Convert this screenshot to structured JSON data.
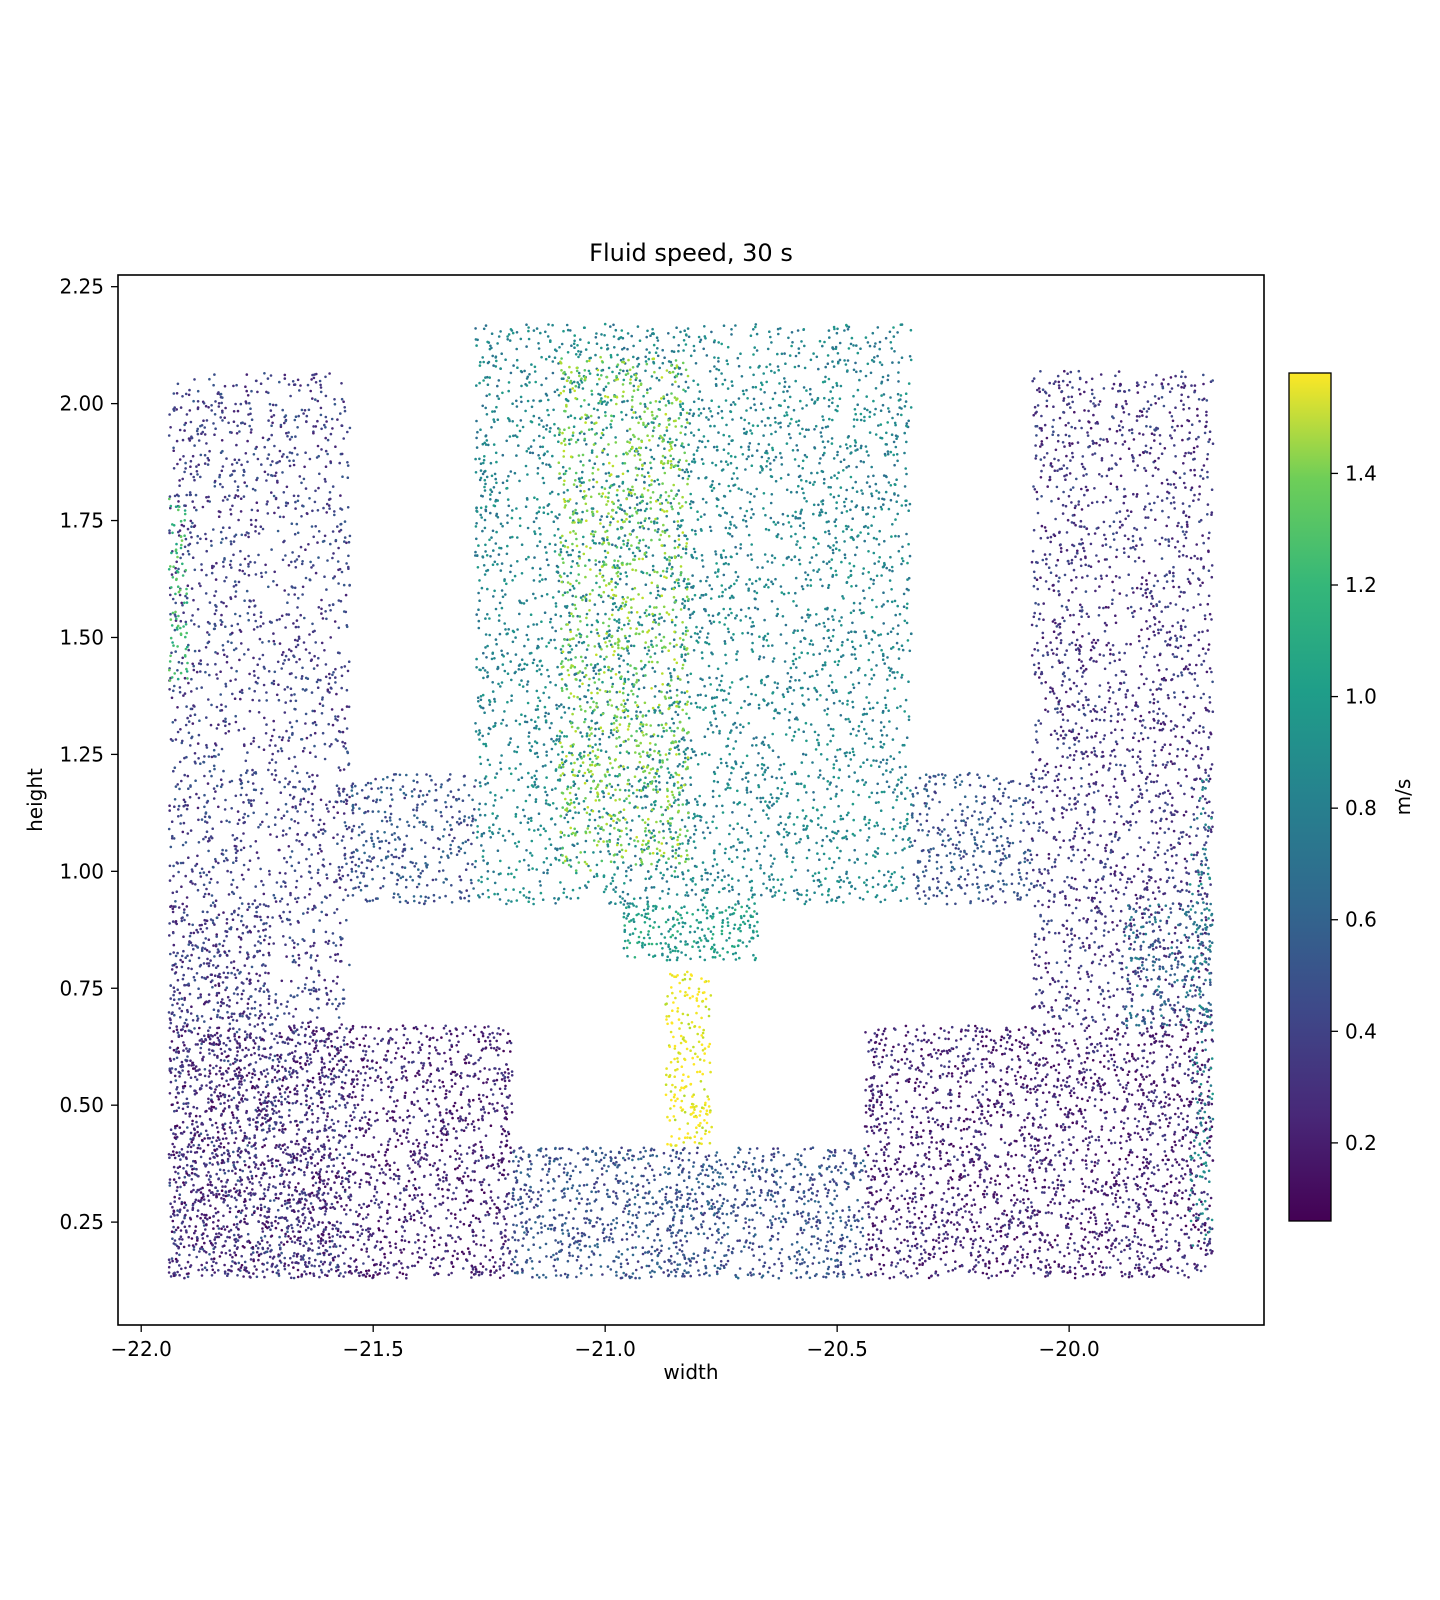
{
  "chart_data": {
    "type": "scatter",
    "title": "Fluid speed, 30 s",
    "xlabel": "width",
    "ylabel": "height",
    "xlim": [
      -22.05,
      -19.58
    ],
    "ylim": [
      0.03,
      2.275
    ],
    "xticks": [
      -22.0,
      -21.5,
      -21.0,
      -20.5,
      -20.0
    ],
    "xtick_labels": [
      "−22.0",
      "−21.5",
      "−21.0",
      "−20.5",
      "−20.0"
    ],
    "yticks": [
      0.25,
      0.5,
      0.75,
      1.0,
      1.25,
      1.5,
      1.75,
      2.0,
      2.25
    ],
    "ytick_labels": [
      "0.25",
      "0.50",
      "0.75",
      "1.00",
      "1.25",
      "1.50",
      "1.75",
      "2.00",
      "2.25"
    ],
    "grid": false,
    "point_color_by": "speed",
    "colorbar": {
      "label": "m/s",
      "colormap": "viridis",
      "range": [
        0.06,
        1.58
      ],
      "ticks": [
        0.2,
        0.4,
        0.6,
        0.8,
        1.0,
        1.2,
        1.4
      ],
      "tick_labels": [
        "0.2",
        "0.4",
        "0.6",
        "0.8",
        "1.0",
        "1.2",
        "1.4"
      ]
    },
    "regions": [
      {
        "x": [
          -21.94,
          -21.55
        ],
        "y": [
          0.13,
          2.07
        ],
        "speed": 0.35,
        "count": 2600
      },
      {
        "x": [
          -21.94,
          -21.72
        ],
        "y": [
          0.68,
          0.93
        ],
        "speed": 0.3,
        "count": 200
      },
      {
        "x": [
          -21.55,
          -21.28
        ],
        "y": [
          0.93,
          1.21
        ],
        "speed": 0.45,
        "count": 350
      },
      {
        "x": [
          -21.28,
          -20.34
        ],
        "y": [
          0.93,
          2.17
        ],
        "speed": 0.75,
        "count": 4200
      },
      {
        "x": [
          -21.1,
          -20.82
        ],
        "y": [
          1.0,
          2.1
        ],
        "speed": 1.3,
        "count": 1100
      },
      {
        "x": [
          -20.34,
          -20.08
        ],
        "y": [
          0.93,
          1.21
        ],
        "speed": 0.45,
        "count": 350
      },
      {
        "x": [
          -20.08,
          -19.69
        ],
        "y": [
          0.67,
          2.07
        ],
        "speed": 0.3,
        "count": 2200
      },
      {
        "x": [
          -19.88,
          -19.69
        ],
        "y": [
          0.67,
          0.93
        ],
        "speed": 0.6,
        "count": 200
      },
      {
        "x": [
          -21.94,
          -21.2
        ],
        "y": [
          0.13,
          0.67
        ],
        "speed": 0.22,
        "count": 2400
      },
      {
        "x": [
          -21.2,
          -20.44
        ],
        "y": [
          0.13,
          0.41
        ],
        "speed": 0.45,
        "count": 1300
      },
      {
        "x": [
          -20.44,
          -19.69
        ],
        "y": [
          0.13,
          0.67
        ],
        "speed": 0.22,
        "count": 2400
      },
      {
        "x": [
          -20.96,
          -20.67
        ],
        "y": [
          0.81,
          0.93
        ],
        "speed": 0.9,
        "count": 250
      },
      {
        "x": [
          -20.87,
          -20.77
        ],
        "y": [
          0.41,
          0.79
        ],
        "speed": 1.55,
        "count": 220
      },
      {
        "x": [
          -19.74,
          -19.69
        ],
        "y": [
          0.2,
          1.2
        ],
        "speed": 0.75,
        "count": 150
      },
      {
        "x": [
          -21.94,
          -21.9
        ],
        "y": [
          1.4,
          1.8
        ],
        "speed": 1.1,
        "count": 80
      }
    ]
  }
}
